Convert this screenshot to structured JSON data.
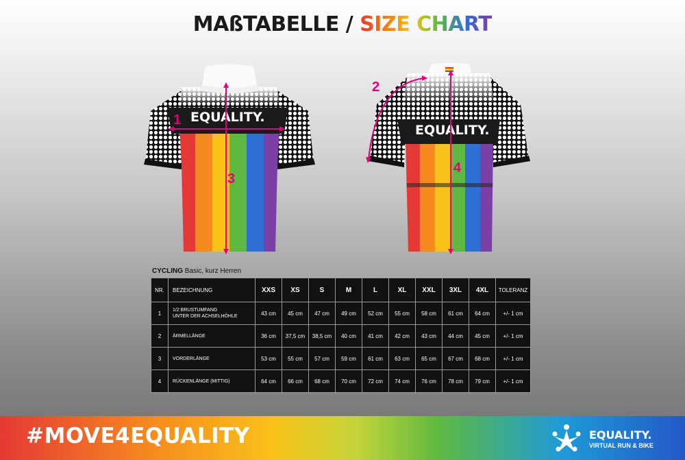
{
  "title": {
    "part_de": "MAßTABELLE",
    "separator": " / ",
    "part_en": "SIZE CHART"
  },
  "colors": {
    "accent_marker": "#e4007c",
    "rainbow": [
      "#e53935",
      "#f58a1f",
      "#f9c21a",
      "#5fb940",
      "#2f6fd6",
      "#7b3fa6"
    ]
  },
  "front_jersey": {
    "chest_text": "EQUALITY.",
    "markers": [
      "1",
      "3"
    ]
  },
  "back_jersey": {
    "chest_text": "EQUALITY.",
    "markers": [
      "2",
      "4"
    ]
  },
  "table_caption": {
    "main": "CYCLING",
    "sub": "Basic, kurz Herren"
  },
  "size_table": {
    "headers": [
      "NR.",
      "BEZEICHNUNG",
      "XXS",
      "XS",
      "S",
      "M",
      "L",
      "XL",
      "XXL",
      "3XL",
      "4XL",
      "TOLERANZ"
    ],
    "rows": [
      {
        "nr": "1",
        "desc_line1": "1/2 BRUSTUMFANG",
        "desc_line2": "UNTER DER ACHSELHÖHLE",
        "values": [
          "43 cm",
          "45 cm",
          "47 cm",
          "49 cm",
          "52 cm",
          "55 cm",
          "58 cm",
          "61 cm",
          "64 cm"
        ],
        "tolerance": "+/- 1 cm"
      },
      {
        "nr": "2",
        "desc_line1": "ÄRMELLÄNGE",
        "desc_line2": "",
        "values": [
          "36 cm",
          "37,5 cm",
          "38,5 cm",
          "40 cm",
          "41 cm",
          "42 cm",
          "43 cm",
          "44 cm",
          "45 cm"
        ],
        "tolerance": "+/- 1 cm"
      },
      {
        "nr": "3",
        "desc_line1": "VORDERLÄNGE",
        "desc_line2": "",
        "values": [
          "53 cm",
          "55 cm",
          "57 cm",
          "59 cm",
          "61 cm",
          "63 cm",
          "65 cm",
          "67 cm",
          "68 cm"
        ],
        "tolerance": "+/- 1 cm"
      },
      {
        "nr": "4",
        "desc_line1": "RÜCKENLÄNGE (MITTIG)",
        "desc_line2": "",
        "values": [
          "64 cm",
          "66 cm",
          "68 cm",
          "70 cm",
          "72 cm",
          "74 cm",
          "76 cm",
          "78 cm",
          "79 cm"
        ],
        "tolerance": "+/- 1 cm"
      }
    ]
  },
  "footer": {
    "hashtag": "#MOVE4EQUALITY",
    "logo_name": "EQUALITY.",
    "logo_sub": "VIRTUAL RUN & BIKE",
    "logo_icon": "runner-star-icon"
  }
}
